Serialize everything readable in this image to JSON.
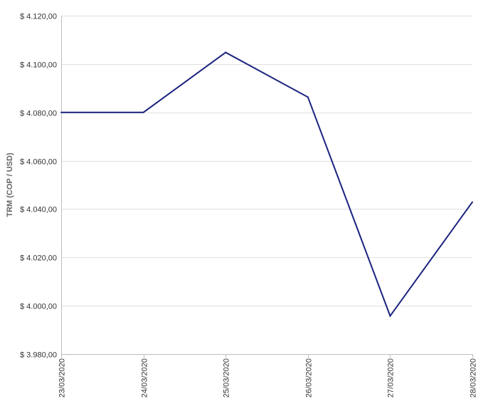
{
  "chart_data": {
    "type": "line",
    "title": "",
    "xlabel": "",
    "ylabel": "TRM (COP / USD)",
    "ylim": [
      3980,
      4120
    ],
    "y_ticks": [
      3980,
      4000,
      4020,
      4040,
      4060,
      4080,
      4100,
      4120
    ],
    "y_tick_labels": [
      "$ 3.980,00",
      "$ 4.000,00",
      "$ 4.020,00",
      "$ 4.040,00",
      "$ 4.060,00",
      "$ 4.080,00",
      "$ 4.100,00",
      "$ 4.120,00"
    ],
    "categories": [
      "23/03/2020",
      "24/03/2020",
      "25/03/2020",
      "26/03/2020",
      "27/03/2020",
      "28/03/2020"
    ],
    "series": [
      {
        "values": [
          4080.0,
          4080.0,
          4104.8,
          4086.3,
          3995.8,
          4042.9
        ],
        "color": "#1a237e"
      }
    ],
    "grid": true,
    "gridline_color": "#e0e0e0",
    "axis_color": "#bdbdbd"
  }
}
